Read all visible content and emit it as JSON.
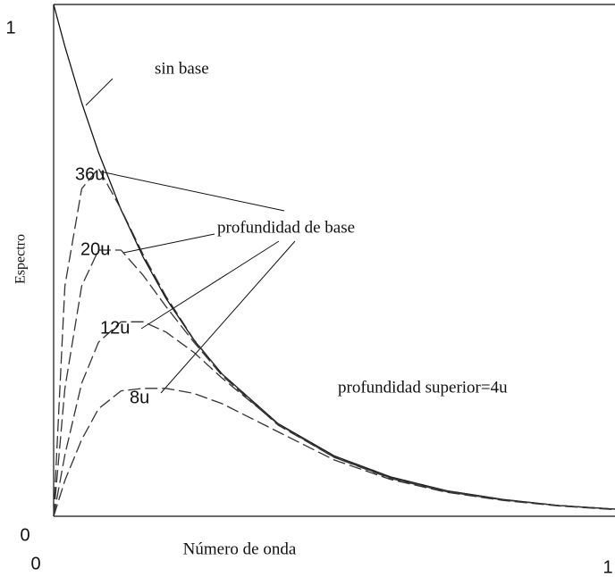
{
  "chart_data": {
    "type": "line",
    "x_label": "Número de onda",
    "y_label": "Espectro",
    "xlim": [
      0,
      1
    ],
    "ylim": [
      0,
      1
    ],
    "xticks": [
      0,
      1
    ],
    "yticks": [
      0,
      1
    ],
    "x": [
      0,
      0.02,
      0.05,
      0.08,
      0.12,
      0.16,
      0.2,
      0.25,
      0.3,
      0.4,
      0.5,
      0.6,
      0.7,
      0.8,
      0.9,
      1
    ],
    "series": [
      {
        "name": "sin base",
        "color": "#111111",
        "line_style": "solid",
        "values": [
          1,
          0.918,
          0.808,
          0.711,
          0.599,
          0.505,
          0.426,
          0.344,
          0.278,
          0.181,
          0.118,
          0.077,
          0.05,
          0.033,
          0.021,
          0.014
        ]
      },
      {
        "name": "36u",
        "color": "#333333",
        "line_style": "dashed",
        "values": [
          0,
          0.45,
          0.64,
          0.68,
          0.6,
          0.51,
          0.43,
          0.345,
          0.278,
          0.18,
          0.117,
          0.076,
          0.05,
          0.033,
          0.021,
          0.014
        ]
      },
      {
        "name": "20u",
        "color": "#333333",
        "line_style": "dashed",
        "values": [
          0,
          0.25,
          0.45,
          0.52,
          0.52,
          0.47,
          0.41,
          0.34,
          0.275,
          0.178,
          0.115,
          0.075,
          0.049,
          0.032,
          0.021,
          0.014
        ]
      },
      {
        "name": "12u",
        "color": "#333333",
        "line_style": "dashed",
        "values": [
          0,
          0.12,
          0.26,
          0.34,
          0.38,
          0.38,
          0.36,
          0.32,
          0.27,
          0.18,
          0.115,
          0.074,
          0.048,
          0.032,
          0.021,
          0.014
        ]
      },
      {
        "name": "8u",
        "color": "#333333",
        "line_style": "dashed",
        "values": [
          0,
          0.07,
          0.15,
          0.21,
          0.245,
          0.25,
          0.25,
          0.24,
          0.22,
          0.165,
          0.11,
          0.072,
          0.047,
          0.031,
          0.02,
          0.013
        ]
      }
    ],
    "annotations": [
      "profundidad de base",
      "profundidad superior=4u"
    ]
  }
}
